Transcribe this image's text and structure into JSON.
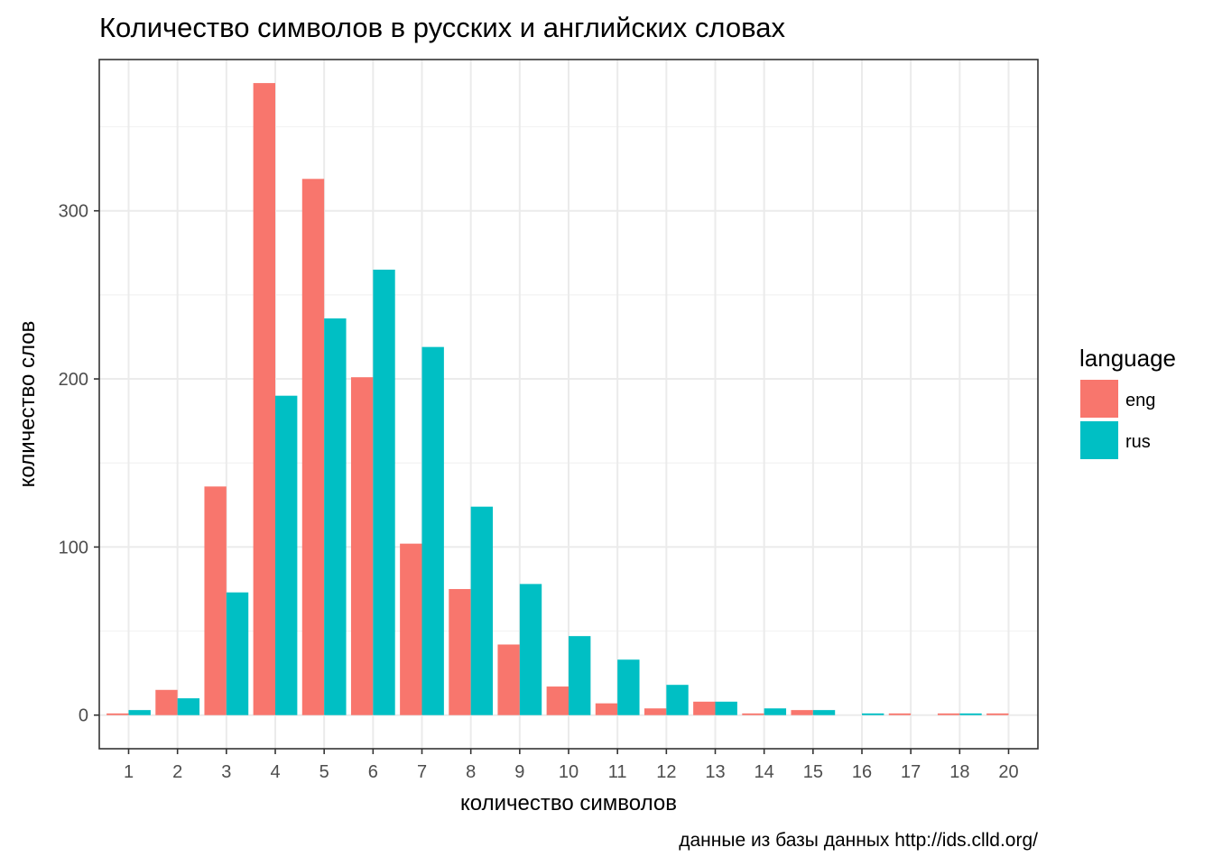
{
  "chart_data": {
    "type": "bar",
    "title": "Количество символов в русских и английских словах",
    "xlabel": "количество символов",
    "ylabel": "количество слов",
    "caption": "данные из базы данных http://ids.clld.org/",
    "categories": [
      "1",
      "2",
      "3",
      "4",
      "5",
      "6",
      "7",
      "8",
      "9",
      "10",
      "11",
      "12",
      "13",
      "14",
      "15",
      "16",
      "17",
      "18",
      "20"
    ],
    "series": [
      {
        "name": "eng",
        "color": "#F8766D",
        "values": [
          1,
          15,
          136,
          376,
          319,
          201,
          102,
          75,
          42,
          17,
          7,
          4,
          8,
          1,
          3,
          0,
          1,
          1,
          1
        ]
      },
      {
        "name": "rus",
        "color": "#00BFC4",
        "values": [
          3,
          10,
          73,
          190,
          236,
          265,
          219,
          124,
          78,
          47,
          33,
          18,
          8,
          4,
          3,
          1,
          0,
          1,
          0
        ]
      }
    ],
    "yticks": [
      0,
      100,
      200,
      300
    ],
    "ylim": [
      -20,
      390
    ],
    "legend": {
      "title": "language",
      "position": "right"
    },
    "grid": true,
    "theme": "bw"
  }
}
